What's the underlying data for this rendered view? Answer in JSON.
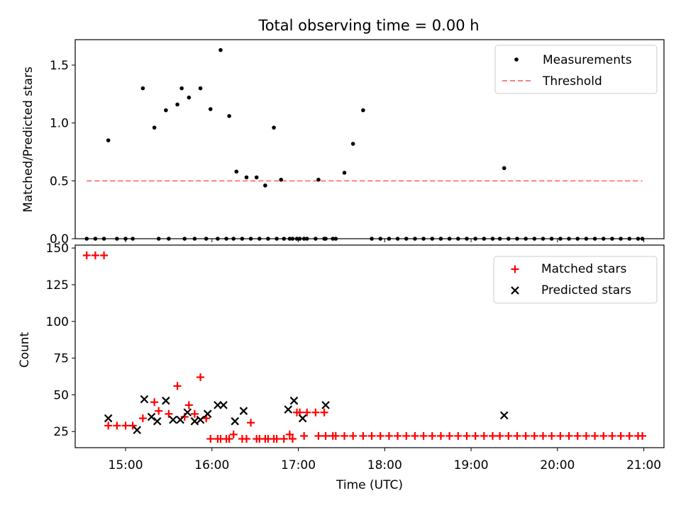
{
  "chart_data": [
    {
      "type": "scatter",
      "title": "Total observing time = 0.00 h",
      "xlabel": "",
      "ylabel": "Matched/Predicted stars",
      "xlim": [
        "14:25",
        "21:14"
      ],
      "ylim": [
        0,
        1.72
      ],
      "yticks": [
        0.0,
        0.5,
        1.0,
        1.5
      ],
      "ytick_labels": [
        "0.0",
        "0.5",
        "1.0",
        "1.5"
      ],
      "legend_position": "top-right",
      "series": [
        {
          "name": "Measurements",
          "marker": "dot",
          "color": "#000000",
          "x": [
            "14:33",
            "14:39",
            "14:45",
            "14:54",
            "15:00",
            "15:05",
            "14:48",
            "15:12",
            "15:20",
            "15:28",
            "15:36",
            "15:44",
            "15:52",
            "15:39",
            "15:59",
            "16:06",
            "16:12",
            "16:17",
            "16:24",
            "16:31",
            "16:37",
            "16:43",
            "16:48",
            "16:54",
            "17:01",
            "17:06",
            "17:12",
            "17:18",
            "17:26",
            "17:32",
            "17:38",
            "17:45",
            "17:51",
            "17:57",
            "18:03",
            "18:09",
            "18:15",
            "18:21",
            "18:27",
            "18:33",
            "18:39",
            "18:45",
            "18:51",
            "18:57",
            "19:03",
            "19:09",
            "19:15",
            "19:20",
            "19:26",
            "19:32",
            "19:38",
            "19:44",
            "19:50",
            "19:56",
            "20:02",
            "20:08",
            "20:14",
            "20:20",
            "20:26",
            "20:32",
            "20:38",
            "20:44",
            "20:50",
            "20:56",
            "20:59",
            "15:23",
            "15:30",
            "15:41",
            "15:48",
            "15:56",
            "16:04",
            "16:10",
            "16:15",
            "16:21",
            "16:27",
            "16:33",
            "16:39",
            "16:45",
            "16:50",
            "16:56",
            "16:59",
            "17:04",
            "17:14",
            "17:19",
            "17:24",
            "19:23"
          ],
          "y": [
            0,
            0,
            0,
            0,
            0,
            0,
            0.85,
            1.3,
            0.96,
            1.11,
            1.16,
            1.22,
            1.3,
            1.3,
            1.12,
            1.63,
            1.06,
            0.58,
            0.53,
            0.53,
            0.46,
            0.96,
            0.51,
            0,
            0,
            0,
            0,
            0,
            0,
            0.57,
            0.82,
            1.11,
            0,
            0,
            0,
            0,
            0,
            0,
            0,
            0,
            0,
            0,
            0,
            0,
            0,
            0,
            0,
            0,
            0,
            0,
            0,
            0,
            0,
            0,
            0,
            0,
            0,
            0,
            0,
            0,
            0,
            0,
            0,
            0,
            0,
            0,
            0,
            0,
            0,
            0,
            0,
            0,
            0,
            0,
            0,
            0,
            0,
            0,
            0,
            0,
            0,
            0,
            0.51,
            0,
            0,
            0.61
          ]
        },
        {
          "name": "Threshold",
          "style": "dashed",
          "color": "#ff7f7f",
          "x": [
            "14:33",
            "20:59"
          ],
          "y": [
            0.5,
            0.5
          ]
        }
      ]
    },
    {
      "type": "scatter",
      "title": "",
      "xlabel": "Time (UTC)",
      "ylabel": "Count",
      "xlim": [
        "14:25",
        "21:14"
      ],
      "ylim": [
        14,
        152
      ],
      "yticks": [
        25,
        50,
        75,
        100,
        125,
        150
      ],
      "ytick_labels": [
        "25",
        "50",
        "75",
        "100",
        "125",
        "150"
      ],
      "xticks": [
        "15:00",
        "16:00",
        "17:00",
        "18:00",
        "19:00",
        "20:00",
        "21:00"
      ],
      "xtick_labels": [
        "15:00",
        "16:00",
        "17:00",
        "18:00",
        "19:00",
        "20:00",
        "21:00"
      ],
      "legend_position": "top-right",
      "series": [
        {
          "name": "Matched stars",
          "marker": "plus",
          "color": "#ff0000",
          "x": [
            "14:33",
            "14:39",
            "14:45",
            "14:48",
            "14:54",
            "15:00",
            "15:05",
            "15:12",
            "15:20",
            "15:23",
            "15:30",
            "15:36",
            "15:44",
            "15:48",
            "15:52",
            "15:56",
            "16:04",
            "16:10",
            "16:15",
            "16:21",
            "16:27",
            "16:33",
            "16:39",
            "16:45",
            "16:50",
            "16:56",
            "17:01",
            "17:06",
            "17:12",
            "17:18",
            "17:26",
            "17:32",
            "17:38",
            "17:45",
            "17:51",
            "17:57",
            "18:03",
            "18:09",
            "18:15",
            "18:21",
            "18:27",
            "18:33",
            "18:39",
            "18:45",
            "18:51",
            "18:57",
            "19:03",
            "19:09",
            "19:15",
            "19:20",
            "19:26",
            "19:32",
            "19:38",
            "19:44",
            "19:50",
            "19:56",
            "20:02",
            "20:08",
            "20:14",
            "20:20",
            "20:26",
            "20:32",
            "20:38",
            "20:44",
            "20:50",
            "20:56",
            "20:59",
            "15:41",
            "15:59",
            "16:06",
            "16:12",
            "16:24",
            "16:31",
            "16:37",
            "16:43",
            "16:54",
            "16:59",
            "17:04",
            "17:14",
            "17:19",
            "17:24"
          ],
          "y": [
            145,
            145,
            145,
            29,
            29,
            29,
            29,
            34,
            45,
            39,
            37,
            56,
            43,
            37,
            62,
            34,
            20,
            20,
            23,
            20,
            31,
            20,
            20,
            20,
            20,
            20,
            38,
            38,
            38,
            38,
            22,
            22,
            22,
            22,
            22,
            22,
            22,
            22,
            22,
            22,
            22,
            22,
            22,
            22,
            22,
            22,
            22,
            22,
            22,
            22,
            22,
            22,
            22,
            22,
            22,
            22,
            22,
            22,
            22,
            22,
            22,
            22,
            22,
            22,
            22,
            22,
            22,
            35,
            20,
            20,
            20,
            20,
            20,
            20,
            20,
            23,
            38,
            22,
            22,
            22,
            22
          ]
        },
        {
          "name": "Predicted stars",
          "marker": "x",
          "color": "#000000",
          "x": [
            "14:48",
            "15:08",
            "15:13",
            "15:18",
            "15:22",
            "15:28",
            "15:33",
            "15:38",
            "15:43",
            "15:48",
            "15:52",
            "15:57",
            "16:04",
            "16:08",
            "16:16",
            "16:22",
            "16:53",
            "16:57",
            "17:03",
            "17:19",
            "19:23"
          ],
          "y": [
            34,
            26,
            47,
            35,
            32,
            46,
            33,
            33,
            38,
            32,
            33,
            37,
            43,
            43,
            32,
            39,
            40,
            46,
            34,
            43,
            36
          ]
        }
      ]
    }
  ]
}
